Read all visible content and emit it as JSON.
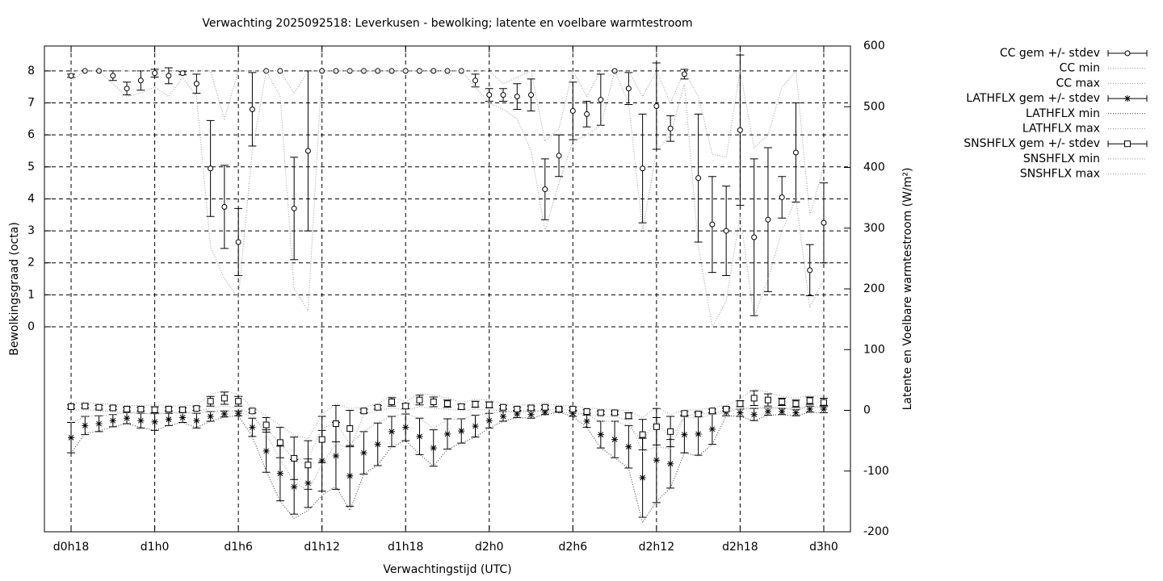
{
  "chart_data": {
    "type": "errorbar-line",
    "title": "Verwachting 2025092518: Leverkusen - bewolking; latente en voelbare warmtestroom",
    "x_label": "Verwachtingstijd (UTC)",
    "y_label": "Bewolkingsgraad (octa)",
    "y2_label": "Latente en Voelbare warmtestroom (W/m²)",
    "categories": [
      "d0h18",
      null,
      null,
      null,
      null,
      null,
      "d1h0",
      null,
      null,
      null,
      null,
      null,
      "d1h6",
      null,
      null,
      null,
      null,
      null,
      "d1h12",
      null,
      null,
      null,
      null,
      null,
      "d1h18",
      null,
      null,
      null,
      null,
      null,
      "d2h0",
      null,
      null,
      null,
      null,
      null,
      "d2h6",
      null,
      null,
      null,
      null,
      null,
      "d2h12",
      null,
      null,
      null,
      null,
      null,
      "d2h18",
      null,
      null,
      null,
      null,
      null,
      "d3h0"
    ],
    "ylim": [
      -6.41,
      8.78
    ],
    "yticks": [
      0,
      1,
      2,
      3,
      4,
      5,
      6,
      7,
      8
    ],
    "y2lim": [
      -200,
      600
    ],
    "y2ticks": [
      -200,
      -100,
      0,
      100,
      200,
      300,
      400,
      500,
      600
    ],
    "grid": true,
    "legend": "right",
    "series": [
      {
        "name": "CC gem +/- stdev",
        "style": "errorbars",
        "marker": "circle",
        "color": "#000000",
        "axis": "y",
        "values": [
          7.85,
          8,
          8,
          7.85,
          7.45,
          7.7,
          7.93,
          7.85,
          7.93,
          7.6,
          4.95,
          3.75,
          2.65,
          6.8,
          8,
          8,
          3.7,
          5.5,
          8,
          8,
          8,
          8,
          8,
          8,
          8,
          8,
          8,
          8,
          8,
          7.7,
          7.25,
          7.25,
          7.2,
          7.25,
          4.3,
          5.35,
          6.75,
          6.65,
          7.1,
          8,
          7.45,
          4.95,
          6.9,
          6.2,
          7.9,
          4.65,
          3.2,
          3.0,
          6.15,
          2.8,
          3.35,
          4.05,
          5.45,
          1.77,
          3.25
        ],
        "errors": [
          0.05,
          0,
          0,
          0.15,
          0.2,
          0.3,
          0.12,
          0.25,
          0.05,
          0.3,
          1.5,
          1.3,
          1.05,
          1.15,
          0,
          0,
          1.6,
          2.5,
          0,
          0,
          0,
          0,
          0,
          0,
          0,
          0,
          0,
          0,
          0,
          0.2,
          0.2,
          0.2,
          0.4,
          0.5,
          0.95,
          0.65,
          0.9,
          0.4,
          0.8,
          0,
          0.5,
          1.7,
          1.35,
          0.4,
          0.15,
          2.0,
          1.5,
          1.4,
          2.35,
          2.45,
          2.25,
          0.65,
          1.55,
          0.8,
          1.25
        ]
      },
      {
        "name": "CC min",
        "style": "dotted",
        "color": "#999999",
        "axis": "y",
        "values": [
          7.7,
          8,
          8,
          7.6,
          7.2,
          7.3,
          7.5,
          7.2,
          7.8,
          7.2,
          2.5,
          1.5,
          0.9,
          5.5,
          8,
          7.2,
          1.2,
          0.5,
          8,
          8,
          8,
          8,
          8,
          8,
          8,
          8,
          8,
          8,
          8,
          7.5,
          7.0,
          6.8,
          6.5,
          5.5,
          3.0,
          4.5,
          5.8,
          6.0,
          6.3,
          8,
          7.0,
          3.0,
          5.5,
          6.0,
          7.6,
          2.5,
          0.0,
          0.8,
          3.5,
          0.3,
          1.5,
          3.0,
          4.0,
          0.6,
          1.5
        ]
      },
      {
        "name": "CC max",
        "style": "dotted",
        "color": "#999999",
        "axis": "y",
        "values": [
          8,
          8,
          8,
          8,
          8,
          8,
          8,
          8,
          8,
          8,
          8,
          6.5,
          8,
          8,
          8,
          8,
          7.3,
          8,
          8,
          8,
          8,
          8,
          8,
          8,
          8,
          8,
          8,
          8,
          8,
          8,
          8,
          7.6,
          7.8,
          8,
          5.8,
          6.2,
          8,
          7.2,
          8,
          8,
          8,
          7.2,
          8,
          7.0,
          8,
          7.2,
          5.4,
          5.3,
          8,
          5.6,
          6.0,
          7.5,
          8,
          3.5,
          5.0
        ]
      },
      {
        "name": "LATHFLX gem +/- stdev",
        "style": "errorbars",
        "marker": "star",
        "color": "#000000",
        "axis": "y2",
        "values": [
          -45,
          -25,
          -22,
          -17,
          -13,
          -17,
          -19,
          -15,
          -12,
          -17,
          -10,
          -6,
          -5,
          -28,
          -67,
          -104,
          -126,
          -120,
          -83,
          -75,
          -108,
          -70,
          -56,
          -35,
          -28,
          -43,
          -62,
          -39,
          -34,
          -26,
          -17,
          -10,
          -6,
          -7,
          -3,
          0,
          -5,
          -18,
          -40,
          -48,
          -60,
          -111,
          -82,
          -88,
          -40,
          -39,
          -31,
          -3,
          -4,
          -7,
          -2,
          -2,
          -4,
          2,
          2
        ],
        "errors": [
          25,
          15,
          13,
          10,
          9,
          12,
          14,
          10,
          8,
          12,
          8,
          5,
          4,
          15,
          35,
          45,
          45,
          40,
          50,
          55,
          50,
          35,
          35,
          25,
          22,
          30,
          30,
          25,
          20,
          18,
          12,
          8,
          6,
          6,
          4,
          3,
          5,
          10,
          22,
          30,
          35,
          65,
          70,
          40,
          30,
          35,
          25,
          6,
          6,
          10,
          6,
          5,
          5,
          5,
          6
        ]
      },
      {
        "name": "LATHFLX min",
        "style": "dotted",
        "color": "#333333",
        "axis": "y2",
        "values": [
          -70,
          -38,
          -34,
          -27,
          -22,
          -28,
          -33,
          -25,
          -20,
          -28,
          -18,
          -11,
          -9,
          -43,
          -100,
          -150,
          -178,
          -165,
          -140,
          -125,
          -165,
          -105,
          -90,
          -60,
          -50,
          -72,
          -92,
          -64,
          -54,
          -44,
          -29,
          -18,
          -12,
          -13,
          -7,
          -3,
          -10,
          -28,
          -62,
          -78,
          -96,
          -185,
          -150,
          -128,
          -70,
          -75,
          -56,
          -9,
          -10,
          -17,
          -8,
          -7,
          -9,
          -3,
          -4
        ]
      },
      {
        "name": "LATHFLX max",
        "style": "dotted",
        "color": "#999999",
        "axis": "y2",
        "values": [
          -20,
          -10,
          -9,
          -7,
          -4,
          -5,
          -5,
          -4,
          -4,
          -5,
          -2,
          -1,
          -1,
          -12,
          -30,
          -55,
          -80,
          -80,
          -30,
          -20,
          -55,
          -35,
          -20,
          -10,
          -6,
          -13,
          -30,
          -15,
          -14,
          -8,
          -5,
          -2,
          -1,
          -1,
          0,
          2,
          0,
          -8,
          -18,
          -18,
          -25,
          -50,
          -15,
          -48,
          -10,
          -5,
          -6,
          2,
          2,
          3,
          4,
          3,
          1,
          6,
          7
        ]
      },
      {
        "name": "SNSHFLX gem +/- stdev",
        "style": "errorbars",
        "marker": "square",
        "color": "#000000",
        "axis": "y2",
        "values": [
          6,
          7,
          5,
          4,
          2,
          2,
          1,
          2,
          1,
          3,
          15,
          20,
          15,
          -1,
          -24,
          -53,
          -79,
          -90,
          -48,
          -22,
          -30,
          -1,
          5,
          14,
          7,
          17,
          14,
          11,
          6,
          10,
          9,
          5,
          2,
          4,
          5,
          2,
          2,
          -2,
          -4,
          -4,
          -9,
          -40,
          -27,
          -35,
          -5,
          -6,
          -1,
          2,
          11,
          20,
          17,
          14,
          11,
          16,
          13
        ],
        "errors": [
          3,
          3,
          3,
          3,
          3,
          3,
          5,
          3,
          3,
          3,
          8,
          10,
          8,
          3,
          12,
          25,
          35,
          40,
          38,
          30,
          30,
          3,
          3,
          7,
          4,
          8,
          8,
          6,
          4,
          5,
          5,
          3,
          3,
          3,
          3,
          3,
          3,
          3,
          3,
          3,
          5,
          25,
          30,
          25,
          3,
          4,
          3,
          3,
          5,
          12,
          10,
          6,
          6,
          6,
          7
        ]
      },
      {
        "name": "SNSHFLX min",
        "style": "dotted",
        "color": "#999999",
        "axis": "y2",
        "values": [
          0,
          1,
          -1,
          -2,
          -4,
          -4,
          -7,
          -4,
          -5,
          -3,
          4,
          7,
          4,
          -7,
          -39,
          -81,
          -117,
          -133,
          -89,
          -55,
          -63,
          -7,
          -1,
          4,
          0,
          6,
          3,
          2,
          -1,
          2,
          1,
          -1,
          -4,
          -2,
          -1,
          -4,
          -4,
          -8,
          -10,
          -10,
          -17,
          -68,
          -60,
          -63,
          -11,
          -13,
          -7,
          -4,
          3,
          5,
          4,
          5,
          2,
          7,
          3
        ]
      },
      {
        "name": "SNSHFLX max",
        "style": "dotted",
        "color": "#999999",
        "axis": "y2",
        "values": [
          12,
          13,
          11,
          10,
          8,
          8,
          9,
          8,
          7,
          9,
          26,
          33,
          26,
          5,
          -9,
          -25,
          -41,
          -47,
          -7,
          11,
          3,
          5,
          11,
          24,
          14,
          28,
          25,
          20,
          13,
          18,
          17,
          11,
          8,
          10,
          11,
          8,
          8,
          4,
          2,
          2,
          -1,
          -12,
          6,
          -7,
          1,
          1,
          5,
          8,
          19,
          35,
          30,
          23,
          20,
          25,
          23
        ]
      }
    ]
  }
}
